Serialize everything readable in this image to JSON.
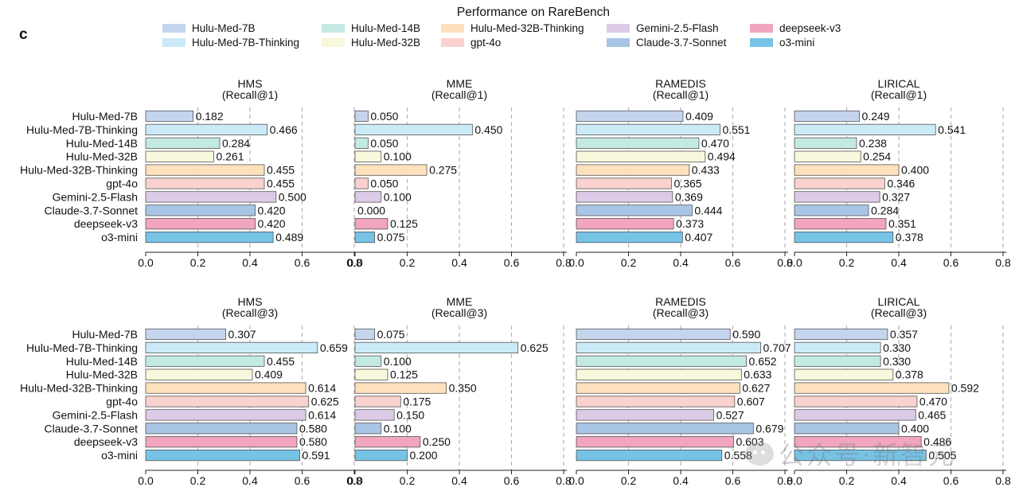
{
  "panel_letter": "c",
  "chart_data": {
    "type": "bar",
    "orientation": "horizontal",
    "title": "Performance on RareBench",
    "models": [
      "Hulu-Med-7B",
      "Hulu-Med-7B-Thinking",
      "Hulu-Med-14B",
      "Hulu-Med-32B",
      "Hulu-Med-32B-Thinking",
      "gpt-4o",
      "Gemini-2.5-Flash",
      "Claude-3.7-Sonnet",
      "deepseek-v3",
      "o3-mini"
    ],
    "legend": [
      {
        "name": "Hulu-Med-7B",
        "color": "#c5d5ee"
      },
      {
        "name": "Hulu-Med-7B-Thinking",
        "color": "#cbeaf7"
      },
      {
        "name": "Hulu-Med-14B",
        "color": "#c3e9e3"
      },
      {
        "name": "Hulu-Med-32B",
        "color": "#f8f8dc"
      },
      {
        "name": "Hulu-Med-32B-Thinking",
        "color": "#fde1bd"
      },
      {
        "name": "gpt-4o",
        "color": "#f9d2d0"
      },
      {
        "name": "Gemini-2.5-Flash",
        "color": "#dccbe6"
      },
      {
        "name": "Claude-3.7-Sonnet",
        "color": "#a9c5e6"
      },
      {
        "name": "deepseek-v3",
        "color": "#f1a5be"
      },
      {
        "name": "o3-mini",
        "color": "#76c3e6"
      }
    ],
    "xlim": [
      0,
      0.8
    ],
    "xticks": [
      "0.0",
      "0.2",
      "0.4",
      "0.6",
      "0.8"
    ],
    "reference_lines": [
      0.2,
      0.4,
      0.6,
      0.8
    ],
    "panels": [
      {
        "dataset": "HMS",
        "metric": "(Recall@1)",
        "values": [
          0.182,
          0.466,
          0.284,
          0.261,
          0.455,
          0.455,
          0.5,
          0.42,
          0.42,
          0.489
        ]
      },
      {
        "dataset": "MME",
        "metric": "(Recall@1)",
        "values": [
          0.05,
          0.45,
          0.05,
          0.1,
          0.275,
          0.05,
          0.1,
          0.0,
          0.125,
          0.075
        ]
      },
      {
        "dataset": "RAMEDIS",
        "metric": "(Recall@1)",
        "values": [
          0.409,
          0.551,
          0.47,
          0.494,
          0.433,
          0.365,
          0.369,
          0.444,
          0.373,
          0.407
        ]
      },
      {
        "dataset": "LIRICAL",
        "metric": "(Recall@1)",
        "values": [
          0.249,
          0.541,
          0.238,
          0.254,
          0.4,
          0.346,
          0.327,
          0.284,
          0.351,
          0.378
        ]
      },
      {
        "dataset": "HMS",
        "metric": "(Recall@3)",
        "values": [
          0.307,
          0.659,
          0.455,
          0.409,
          0.614,
          0.625,
          0.614,
          0.58,
          0.58,
          0.591
        ]
      },
      {
        "dataset": "MME",
        "metric": "(Recall@3)",
        "values": [
          0.075,
          0.625,
          0.1,
          0.125,
          0.35,
          0.175,
          0.15,
          0.1,
          0.25,
          0.2
        ]
      },
      {
        "dataset": "RAMEDIS",
        "metric": "(Recall@3)",
        "values": [
          0.59,
          0.707,
          0.652,
          0.633,
          0.627,
          0.607,
          0.527,
          0.679,
          0.603,
          0.558
        ]
      },
      {
        "dataset": "LIRICAL",
        "metric": "(Recall@3)",
        "values": [
          0.357,
          0.33,
          0.33,
          0.378,
          0.592,
          0.47,
          0.465,
          0.4,
          0.486,
          0.505
        ]
      }
    ]
  },
  "watermark": {
    "text": "公众号·新智元",
    "icon": "wechat-icon"
  }
}
